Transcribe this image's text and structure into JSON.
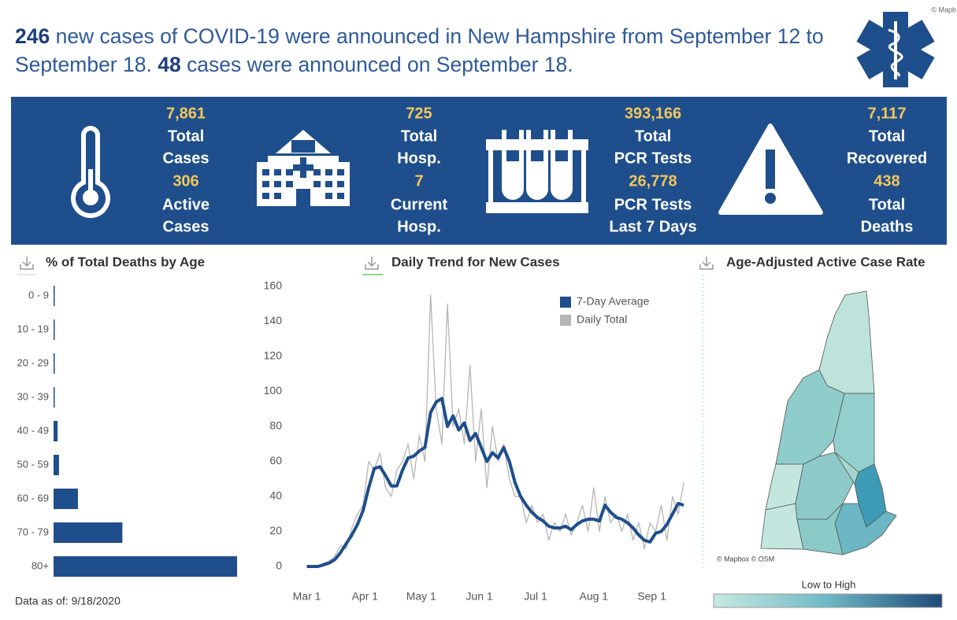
{
  "header": {
    "count_week": "246",
    "text_1": " new cases of COVID-19 were announced in New Hampshire from September 12 to September 18. ",
    "count_day": "48",
    "text_2": " cases were announced on September 18."
  },
  "credit": "© Mapb",
  "stats": [
    {
      "value_1": "7,861",
      "label_1": [
        "Total",
        "Cases"
      ],
      "value_2": "306",
      "label_2": [
        "Active",
        "Cases"
      ]
    },
    {
      "value_1": "725",
      "label_1": [
        "Total",
        "Hosp."
      ],
      "value_2": "7",
      "label_2": [
        "Current",
        "Hosp."
      ]
    },
    {
      "value_1": "393,166",
      "label_1": [
        "Total",
        "PCR Tests"
      ],
      "value_2": "26,778",
      "label_2": [
        "PCR Tests",
        "Last 7 Days"
      ]
    },
    {
      "value_1": "7,117",
      "label_1": [
        "Total",
        "Recovered"
      ],
      "value_2": "438",
      "label_2": [
        "Total",
        "Deaths"
      ]
    }
  ],
  "chart_data": [
    {
      "type": "bar",
      "orientation": "horizontal",
      "title": "% of Total Deaths by Age",
      "categories": [
        "0 - 9",
        "10 - 19",
        "20 - 29",
        "30 - 39",
        "40 - 49",
        "50 - 59",
        "60 - 69",
        "70 - 79",
        "80+"
      ],
      "values": [
        0.1,
        0.1,
        0.2,
        0.3,
        1.4,
        1.9,
        8.5,
        24,
        64
      ],
      "color": "#1f4e8c"
    },
    {
      "type": "line",
      "title": "Daily Trend for New Cases",
      "x": [
        0,
        3,
        6,
        9,
        12,
        15,
        18,
        21,
        24,
        27,
        30,
        33,
        36,
        39,
        42,
        45,
        48,
        51,
        54,
        57,
        60,
        63,
        66,
        69,
        72,
        75,
        78,
        81,
        84,
        87,
        90,
        93,
        96,
        99,
        102,
        105,
        108,
        111,
        114,
        117,
        120,
        123,
        126,
        129,
        132,
        135,
        138,
        141,
        144,
        147,
        150,
        153,
        156,
        159,
        162,
        165,
        168,
        171,
        174,
        177,
        180,
        183,
        186,
        189,
        192,
        195,
        198,
        201
      ],
      "series": [
        {
          "name": "7-Day Average",
          "color": "#1f4e8c",
          "width": 4,
          "values": [
            0,
            0,
            0,
            1,
            2,
            4,
            8,
            13,
            18,
            24,
            32,
            45,
            56,
            57,
            52,
            46,
            46,
            55,
            62,
            63,
            66,
            68,
            88,
            94,
            96,
            80,
            86,
            78,
            82,
            72,
            76,
            68,
            60,
            65,
            62,
            68,
            60,
            48,
            40,
            35,
            31,
            28,
            26,
            23,
            22,
            22,
            23,
            21,
            24,
            26,
            27,
            27,
            26,
            35,
            31,
            28,
            27,
            25,
            22,
            18,
            15,
            14,
            19,
            20,
            24,
            30,
            36,
            35
          ]
        },
        {
          "name": "Daily Total",
          "color": "#b5b5b5",
          "width": 1.3,
          "values": [
            0,
            0,
            0,
            2,
            3,
            6,
            12,
            10,
            22,
            30,
            35,
            60,
            55,
            65,
            45,
            40,
            55,
            60,
            70,
            50,
            75,
            60,
            155,
            90,
            70,
            150,
            80,
            90,
            70,
            115,
            60,
            90,
            45,
            80,
            60,
            70,
            50,
            40,
            40,
            25,
            35,
            25,
            30,
            15,
            25,
            20,
            30,
            18,
            25,
            35,
            20,
            45,
            20,
            40,
            25,
            30,
            20,
            30,
            15,
            25,
            10,
            25,
            20,
            35,
            15,
            40,
            30,
            48
          ]
        }
      ],
      "xlim": [
        -4,
        206
      ],
      "xticks": [
        {
          "value": 0,
          "label": "Mar 1"
        },
        {
          "value": 31,
          "label": "Apr 1"
        },
        {
          "value": 61,
          "label": "May 1"
        },
        {
          "value": 92,
          "label": "Jun 1"
        },
        {
          "value": 122,
          "label": "Jul 1"
        },
        {
          "value": 153,
          "label": "Aug 1"
        },
        {
          "value": 184,
          "label": "Sep 1"
        }
      ],
      "ylim": [
        0,
        160
      ],
      "yticks": [
        0,
        20,
        40,
        60,
        80,
        100,
        120,
        140,
        160
      ],
      "legend": "top-right"
    }
  ],
  "map": {
    "title": "Age-Adjusted Active Case Rate",
    "attribution": "© Mapbox © OSM",
    "legend": "Low to High"
  },
  "footnote": "Data as of: 9/18/2020"
}
